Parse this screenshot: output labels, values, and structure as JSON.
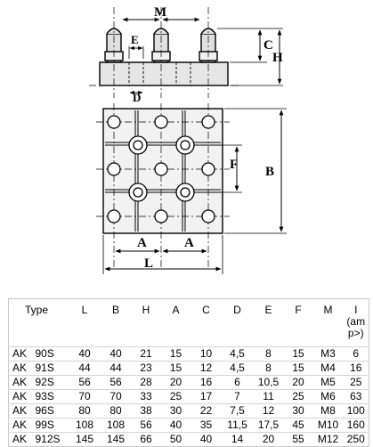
{
  "drawing": {
    "dimension_labels": {
      "M": "M",
      "E": "E",
      "C": "C",
      "H": "H",
      "D": "D",
      "F": "F",
      "B": "B",
      "A_left": "A",
      "A_right": "A",
      "L": "L"
    }
  },
  "table": {
    "headers": {
      "type": "Type",
      "L": "L",
      "B": "B",
      "H": "H",
      "A": "A",
      "C": "C",
      "D": "D",
      "E": "E",
      "F": "F",
      "M": "M",
      "I_line1": "I",
      "I_line2": "(am",
      "I_line3": "p>)"
    },
    "rows": [
      {
        "prefix": "AK",
        "model": "90S",
        "L": "40",
        "B": "40",
        "H": "21",
        "A": "15",
        "C": "10",
        "D": "4,5",
        "E": "8",
        "F": "15",
        "M": "M3",
        "I": "6"
      },
      {
        "prefix": "AK",
        "model": "91S",
        "L": "44",
        "B": "44",
        "H": "23",
        "A": "15",
        "C": "12",
        "D": "4,5",
        "E": "8",
        "F": "15",
        "M": "M4",
        "I": "16"
      },
      {
        "prefix": "AK",
        "model": "92S",
        "L": "56",
        "B": "56",
        "H": "28",
        "A": "20",
        "C": "16",
        "D": "6",
        "E": "10,5",
        "F": "20",
        "M": "M5",
        "I": "25"
      },
      {
        "prefix": "AK",
        "model": "93S",
        "L": "70",
        "B": "70",
        "H": "33",
        "A": "25",
        "C": "17",
        "D": "7",
        "E": "11",
        "F": "25",
        "M": "M6",
        "I": "63"
      },
      {
        "prefix": "AK",
        "model": "96S",
        "L": "80",
        "B": "80",
        "H": "38",
        "A": "30",
        "C": "22",
        "D": "7,5",
        "E": "12",
        "F": "30",
        "M": "M8",
        "I": "100"
      },
      {
        "prefix": "AK",
        "model": "99S",
        "L": "108",
        "B": "108",
        "H": "56",
        "A": "40",
        "C": "35",
        "D": "11,5",
        "E": "17,5",
        "F": "45",
        "M": "M10",
        "I": "160"
      },
      {
        "prefix": "AK",
        "model": "912S",
        "L": "145",
        "B": "145",
        "H": "66",
        "A": "50",
        "C": "40",
        "D": "14",
        "E": "20",
        "F": "55",
        "M": "M12",
        "I": "250"
      }
    ]
  }
}
